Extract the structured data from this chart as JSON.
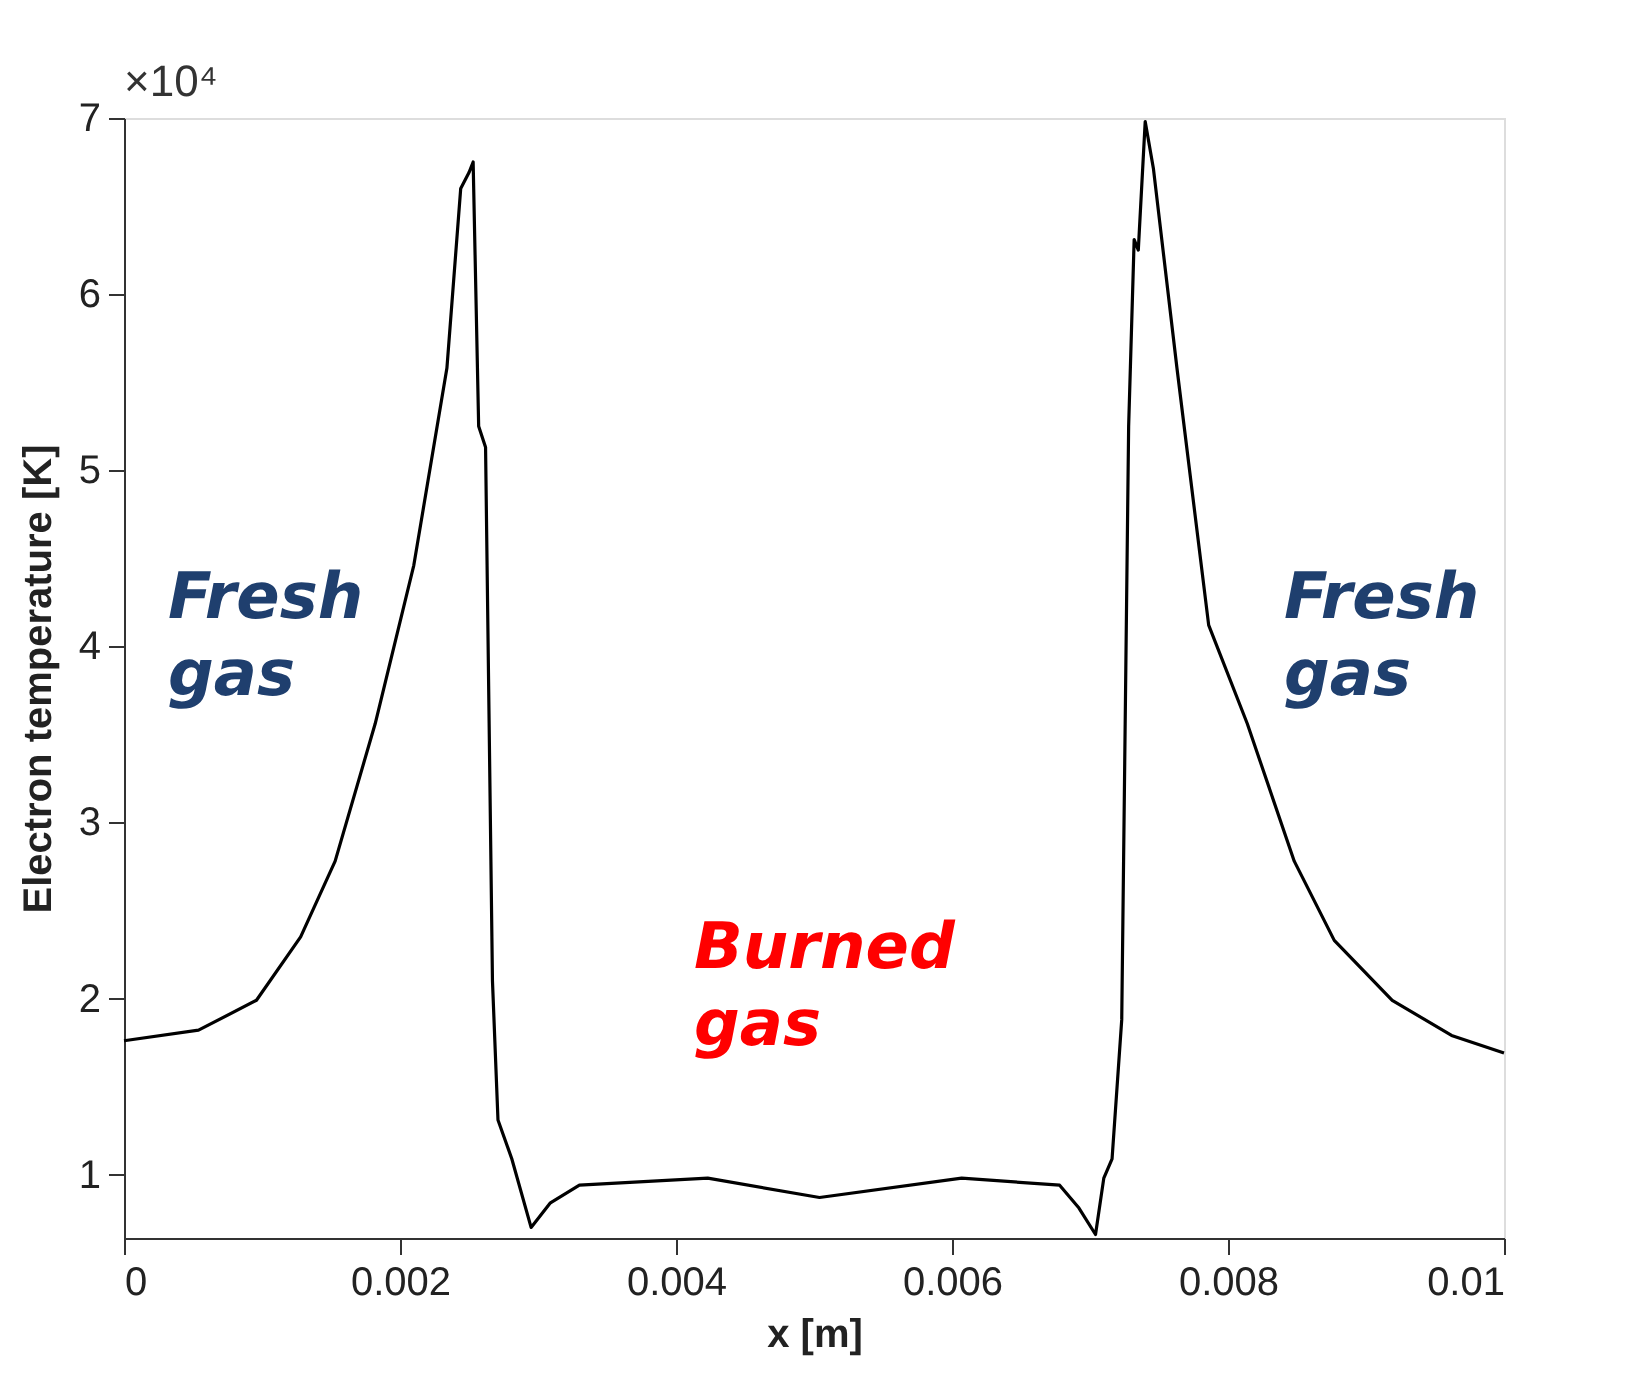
{
  "chart_data": {
    "type": "line",
    "xlabel": "x [m]",
    "ylabel": "Electron  temperature [K]",
    "x": [
      0,
      0.00054,
      0.00096,
      0.00128,
      0.00153,
      0.00182,
      0.0021,
      0.00234,
      0.00244,
      0.0025,
      0.00253,
      0.00257,
      0.00262,
      0.00267,
      0.00271,
      0.00281,
      0.00295,
      0.00309,
      0.0033,
      0.00423,
      0.00504,
      0.00607,
      0.00678,
      0.00692,
      0.00704,
      0.0071,
      0.00716,
      0.00723,
      0.00728,
      0.00732,
      0.00735,
      0.0074,
      0.00746,
      0.00763,
      0.00786,
      0.00814,
      0.00848,
      0.00877,
      0.00919,
      0.00962,
      0.01
    ],
    "series": [
      {
        "color": "#000000",
        "values": [
          1.76,
          1.82,
          1.99,
          2.35,
          2.78,
          3.56,
          4.46,
          5.58,
          6.6,
          6.69,
          6.75,
          5.25,
          5.13,
          2.1,
          1.31,
          1.09,
          0.7,
          0.84,
          0.94,
          0.98,
          0.87,
          0.98,
          0.94,
          0.81,
          0.66,
          0.98,
          1.09,
          1.88,
          5.25,
          6.31,
          6.25,
          6.98,
          6.71,
          5.58,
          4.12,
          3.56,
          2.78,
          2.33,
          1.99,
          1.79,
          1.69
        ]
      }
    ],
    "xlim": [
      0,
      0.01
    ],
    "ylim": [
      0.64,
      7
    ],
    "xticks": [
      0,
      0.002,
      0.004,
      0.006,
      0.008,
      0.01
    ],
    "yticks": [
      1,
      2,
      3,
      4,
      5,
      6,
      7
    ],
    "grid": false,
    "line_style": "solid",
    "annotations": [
      "×10⁴",
      "Fresh\ngas",
      "Fresh\ngas",
      "Burned\ngas"
    ]
  }
}
